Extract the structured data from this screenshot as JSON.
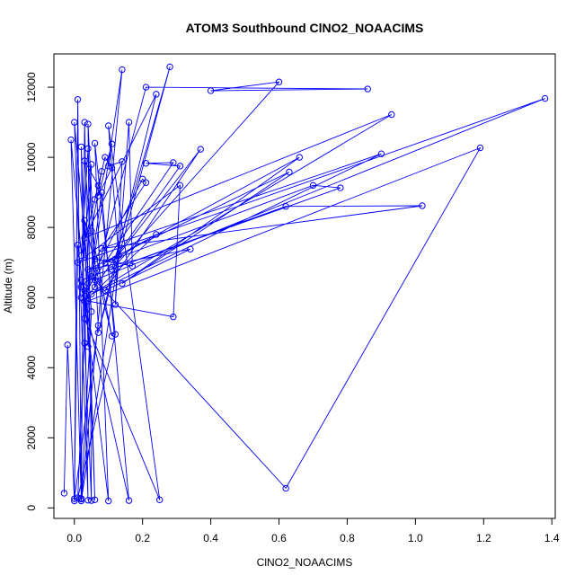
{
  "chart_data": {
    "type": "line",
    "title": "ATOM3 Southbound ClNO2_NOAACIMS",
    "xlabel": "ClNO2_NOAACIMS",
    "ylabel": "Altitude (m)",
    "xlim": [
      -0.06,
      1.41
    ],
    "ylim": [
      -300,
      12950
    ],
    "xticks": [
      0.0,
      0.2,
      0.4,
      0.6,
      0.8,
      1.0,
      1.2,
      1.4
    ],
    "xtick_labels": [
      "0.0",
      "0.2",
      "0.4",
      "0.6",
      "0.8",
      "1.0",
      "1.2",
      "1.4"
    ],
    "yticks": [
      0,
      2000,
      4000,
      6000,
      8000,
      10000,
      12000
    ],
    "ytick_labels": [
      "0",
      "2000",
      "4000",
      "6000",
      "8000",
      "10000",
      "12000"
    ],
    "grid": false,
    "marker": "open-circle",
    "series": [
      {
        "name": "",
        "color": "#0000ff",
        "points": [
          [
            -0.03,
            420
          ],
          [
            -0.02,
            4650
          ],
          [
            0.0,
            200
          ],
          [
            0.01,
            11650
          ],
          [
            0.02,
            250
          ],
          [
            -0.01,
            10500
          ],
          [
            0.03,
            6200
          ],
          [
            0.04,
            220
          ],
          [
            0.0,
            11000
          ],
          [
            0.05,
            5600
          ],
          [
            0.02,
            270
          ],
          [
            0.03,
            11000
          ],
          [
            0.04,
            6400
          ],
          [
            0.06,
            230
          ],
          [
            0.02,
            10300
          ],
          [
            0.03,
            4700
          ],
          [
            0.05,
            210
          ],
          [
            0.04,
            10950
          ],
          [
            0.07,
            5200
          ],
          [
            0.0,
            260
          ],
          [
            0.01,
            7500
          ],
          [
            0.1,
            200
          ],
          [
            0.06,
            10400
          ],
          [
            0.12,
            4950
          ],
          [
            0.01,
            290
          ],
          [
            0.05,
            9800
          ],
          [
            0.02,
            6300
          ],
          [
            0.16,
            210
          ],
          [
            0.08,
            9000
          ],
          [
            0.03,
            5400
          ],
          [
            0.25,
            230
          ],
          [
            0.1,
            10900
          ],
          [
            0.13,
            7200
          ],
          [
            0.02,
            200
          ],
          [
            0.14,
            12500
          ],
          [
            0.05,
            6600
          ],
          [
            0.62,
            560
          ],
          [
            1.19,
            10270
          ],
          [
            0.04,
            5900
          ],
          [
            0.29,
            5450
          ],
          [
            0.31,
            9200
          ],
          [
            0.01,
            7000
          ],
          [
            1.38,
            11680
          ],
          [
            0.06,
            6500
          ],
          [
            0.21,
            12000
          ],
          [
            0.86,
            11950
          ],
          [
            0.4,
            11900
          ],
          [
            0.6,
            12150
          ],
          [
            0.11,
            6800
          ],
          [
            0.28,
            12580
          ],
          [
            0.07,
            5000
          ],
          [
            0.24,
            11800
          ],
          [
            0.03,
            7700
          ],
          [
            0.93,
            11220
          ],
          [
            0.05,
            6100
          ],
          [
            0.9,
            10100
          ],
          [
            0.08,
            7400
          ],
          [
            1.02,
            8620
          ],
          [
            0.62,
            8600
          ],
          [
            0.02,
            6500
          ],
          [
            0.78,
            9130
          ],
          [
            0.7,
            9200
          ],
          [
            0.09,
            7000
          ],
          [
            0.66,
            10000
          ],
          [
            0.14,
            6400
          ],
          [
            0.63,
            9580
          ],
          [
            0.04,
            6800
          ],
          [
            0.34,
            7380
          ],
          [
            0.09,
            6200
          ],
          [
            0.37,
            10230
          ],
          [
            0.12,
            7100
          ],
          [
            0.24,
            7800
          ],
          [
            0.03,
            5900
          ],
          [
            0.31,
            9750
          ],
          [
            0.21,
            9830
          ],
          [
            0.29,
            9850
          ],
          [
            0.02,
            6000
          ],
          [
            0.2,
            9380
          ],
          [
            0.21,
            9280
          ],
          [
            0.06,
            7100
          ],
          [
            0.17,
            6900
          ],
          [
            0.16,
            11000
          ],
          [
            0.12,
            5800
          ],
          [
            0.14,
            9880
          ],
          [
            0.1,
            9750
          ],
          [
            0.11,
            10380
          ],
          [
            0.07,
            8900
          ],
          [
            0.11,
            9700
          ],
          [
            0.09,
            10000
          ],
          [
            0.06,
            8800
          ],
          [
            0.07,
            9200
          ],
          [
            0.03,
            9900
          ],
          [
            0.06,
            6300
          ],
          [
            0.04,
            10250
          ],
          [
            0.02,
            7200
          ],
          [
            0.08,
            9600
          ],
          [
            0.05,
            7900
          ],
          [
            0.11,
            4900
          ],
          [
            0.03,
            8200
          ],
          [
            0.04,
            4600
          ]
        ]
      }
    ]
  }
}
